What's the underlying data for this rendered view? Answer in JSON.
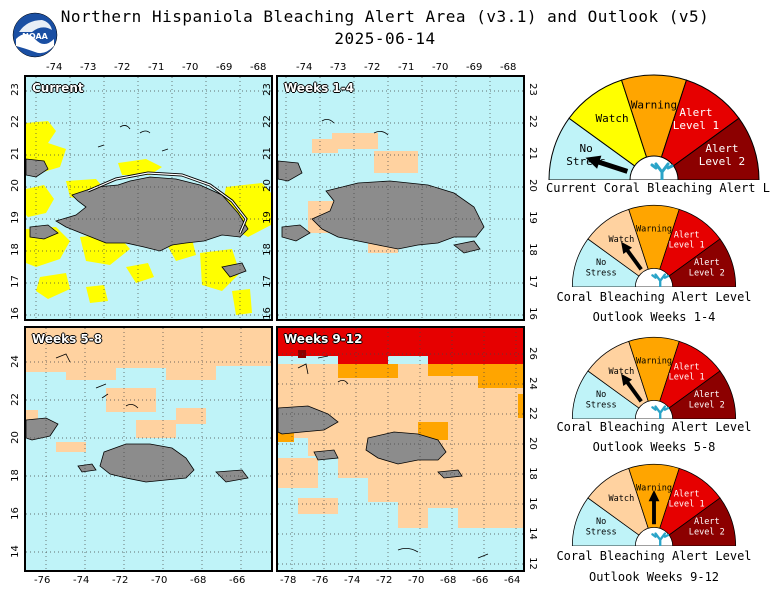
{
  "header": {
    "title": "Northern Hispaniola Bleaching Alert Area (v3.1) and Outlook (v5)",
    "date": "2025-06-14",
    "logo_text": "NOAA"
  },
  "colors": {
    "water": "#bff3f8",
    "land": "#8c8c8c",
    "no_stress": "#bff3f8",
    "watch": "#ffff00",
    "watch_outlook": "#ffd2a0",
    "warning": "#ffa500",
    "alert1": "#e60000",
    "alert2": "#8c0000"
  },
  "maps": {
    "top_lon_ticks": [
      "-74",
      "-73",
      "-72",
      "-71",
      "-70",
      "-69",
      "-68"
    ],
    "top_lat_ticks": [
      "23",
      "22",
      "21",
      "20",
      "19",
      "18",
      "17",
      "16"
    ],
    "bottom_left_lon_ticks": [
      "-76",
      "-74",
      "-72",
      "-70",
      "-68",
      "-66"
    ],
    "bottom_right_lon_ticks": [
      "-78",
      "-76",
      "-74",
      "-72",
      "-70",
      "-68",
      "-66",
      "-64"
    ],
    "bottom_lat_ticks": [
      "24",
      "22",
      "20",
      "18",
      "16",
      "14"
    ],
    "bottom_right_lat_ticks": [
      "26",
      "24",
      "22",
      "20",
      "18",
      "16",
      "14",
      "12"
    ],
    "panels": [
      {
        "label": "Current"
      },
      {
        "label": "Weeks 1-4"
      },
      {
        "label": "Weeks 5-8"
      },
      {
        "label": "Weeks 9-12"
      }
    ]
  },
  "gauges": [
    {
      "caption": "Current Coral Bleaching Alert Level",
      "caption2": "",
      "level": "No Stress",
      "labels": {
        "no_stress": [
          "No",
          "Stress"
        ],
        "watch": [
          "Watch"
        ],
        "warning": [
          "Warning"
        ],
        "alert1": [
          "Alert",
          "Level 1"
        ],
        "alert2": [
          "Alert",
          "Level 2"
        ]
      }
    },
    {
      "caption": "Coral Bleaching Alert Level",
      "caption2": "Outlook Weeks 1-4",
      "level": "Watch",
      "labels": {
        "no_stress": [
          "No",
          "Stress"
        ],
        "watch": [
          "Watch"
        ],
        "warning": [
          "Warning"
        ],
        "alert1": [
          "Alert",
          "Level 1"
        ],
        "alert2": [
          "Alert",
          "Level 2"
        ]
      }
    },
    {
      "caption": "Coral Bleaching Alert Level",
      "caption2": "Outlook Weeks 5-8",
      "level": "Watch",
      "labels": {
        "no_stress": [
          "No",
          "Stress"
        ],
        "watch": [
          "Watch"
        ],
        "warning": [
          "Warning"
        ],
        "alert1": [
          "Alert",
          "Level 1"
        ],
        "alert2": [
          "Alert",
          "Level 2"
        ]
      }
    },
    {
      "caption": "Coral Bleaching Alert Level",
      "caption2": "Outlook Weeks 9-12",
      "level": "Warning",
      "labels": {
        "no_stress": [
          "No",
          "Stress"
        ],
        "watch": [
          "Watch"
        ],
        "warning": [
          "Warning"
        ],
        "alert1": [
          "Alert",
          "Level 1"
        ],
        "alert2": [
          "Alert",
          "Level 2"
        ]
      }
    }
  ]
}
